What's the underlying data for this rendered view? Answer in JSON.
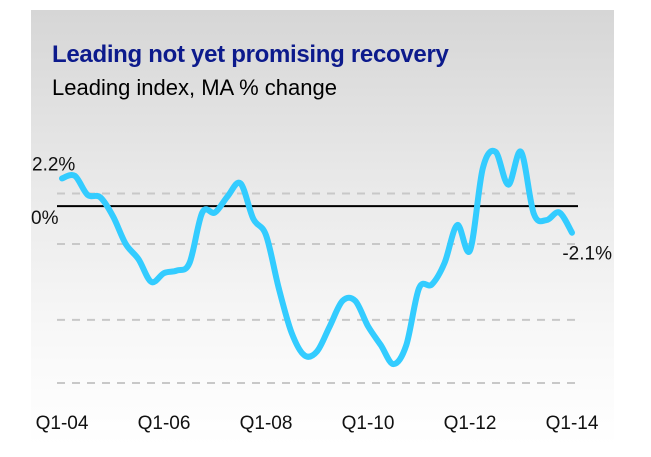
{
  "chart_data": {
    "type": "line",
    "title": "Leading not yet promising recovery",
    "subtitle": "Leading index, MA % change",
    "xlabel": "",
    "ylabel": "",
    "x_ticks": [
      "Q1-04",
      "Q1-06",
      "Q1-08",
      "Q1-10",
      "Q1-12",
      "Q1-14"
    ],
    "y_labels": [
      {
        "value": 0,
        "text": "0%"
      }
    ],
    "annotations": [
      {
        "text": "2.2%",
        "x": 2004.0,
        "y": 2.2
      },
      {
        "text": "-2.1%",
        "x": 2014.0,
        "y": -2.1
      }
    ],
    "ylim": [
      -14,
      5
    ],
    "gridlines_y": [
      1,
      -3,
      -9,
      -14
    ],
    "grid": true,
    "legend": "none",
    "colors": {
      "series": "#33ccff",
      "zero_line": "#000000",
      "grid": "#c8c8c8",
      "title": "#0c1a8c"
    },
    "series": [
      {
        "x": [
          2004.0,
          2004.25,
          2004.5,
          2004.75,
          2005.0,
          2005.25,
          2005.5,
          2005.75,
          2006.0,
          2006.25,
          2006.5,
          2006.75,
          2007.0,
          2007.25,
          2007.5,
          2007.75,
          2008.0,
          2008.25,
          2008.5,
          2008.75,
          2009.0,
          2009.25,
          2009.5,
          2009.75,
          2010.0,
          2010.25,
          2010.5,
          2010.75,
          2011.0,
          2011.25,
          2011.5,
          2011.75,
          2012.0,
          2012.25,
          2012.5,
          2012.75,
          2013.0,
          2013.25,
          2013.5,
          2013.75,
          2014.0
        ],
        "y": [
          2.2,
          2.4,
          0.9,
          0.7,
          -0.8,
          -3.0,
          -4.2,
          -6.0,
          -5.3,
          -5.1,
          -4.5,
          -0.5,
          -0.5,
          0.8,
          1.8,
          -1.0,
          -2.3,
          -6.5,
          -10.0,
          -11.8,
          -11.5,
          -9.5,
          -7.5,
          -7.5,
          -9.5,
          -11.0,
          -12.5,
          -11.0,
          -6.5,
          -6.2,
          -4.5,
          -1.5,
          -3.5,
          3.0,
          4.3,
          1.7,
          4.3,
          -0.6,
          -1.1,
          -0.5,
          -2.1
        ]
      }
    ]
  }
}
